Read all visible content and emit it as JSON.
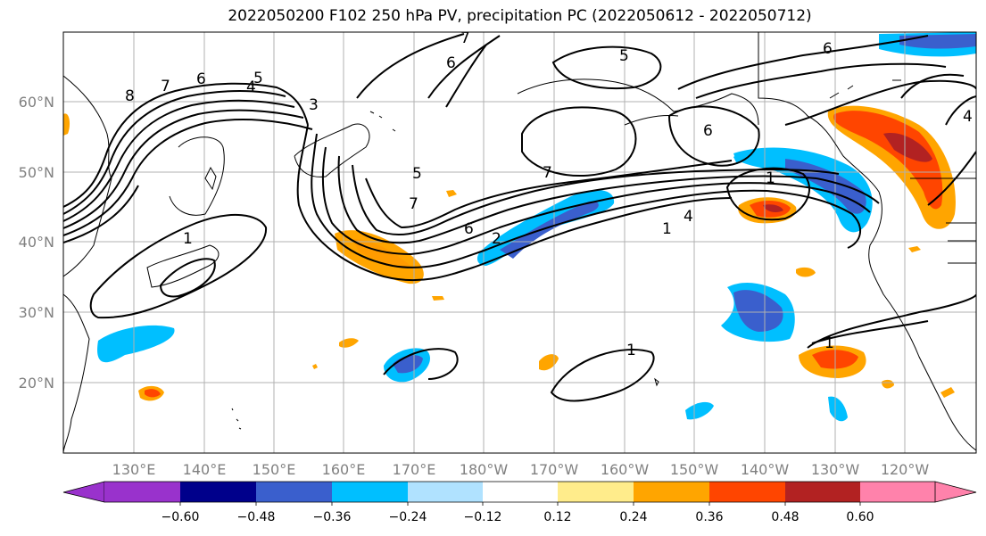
{
  "title": "2022050200 F102 250 hPa PV, precipitation PC (2022050612 - 2022050712)",
  "map": {
    "lon_labels": [
      "130°E",
      "140°E",
      "150°E",
      "160°E",
      "170°E",
      "180°W",
      "170°W",
      "160°W",
      "150°W",
      "140°W",
      "130°W",
      "120°W"
    ],
    "lat_labels": [
      "60°N",
      "50°N",
      "40°N",
      "30°N",
      "20°N"
    ],
    "contour_color": "#000000",
    "grid_color": "#b0b0b0"
  },
  "contour_labels": [
    "8",
    "7",
    "6",
    "5",
    "4",
    "3",
    "1",
    "7",
    "5",
    "7",
    "6",
    "2",
    "1",
    "6",
    "7",
    "6",
    "5",
    "1",
    "4",
    "1",
    "1",
    "1",
    "6",
    "4"
  ],
  "colorbar": {
    "ticks": [
      "−0.60",
      "−0.48",
      "−0.36",
      "−0.24",
      "−0.12",
      "0.12",
      "0.24",
      "0.36",
      "0.48",
      "0.60"
    ],
    "colors": [
      "#9932cc",
      "#00008b",
      "#3a5fcd",
      "#00bfff",
      "#b0e2ff",
      "#ffffff",
      "#ffec8b",
      "#ffa500",
      "#ff4500",
      "#b22222",
      "#ff82ab"
    ]
  }
}
